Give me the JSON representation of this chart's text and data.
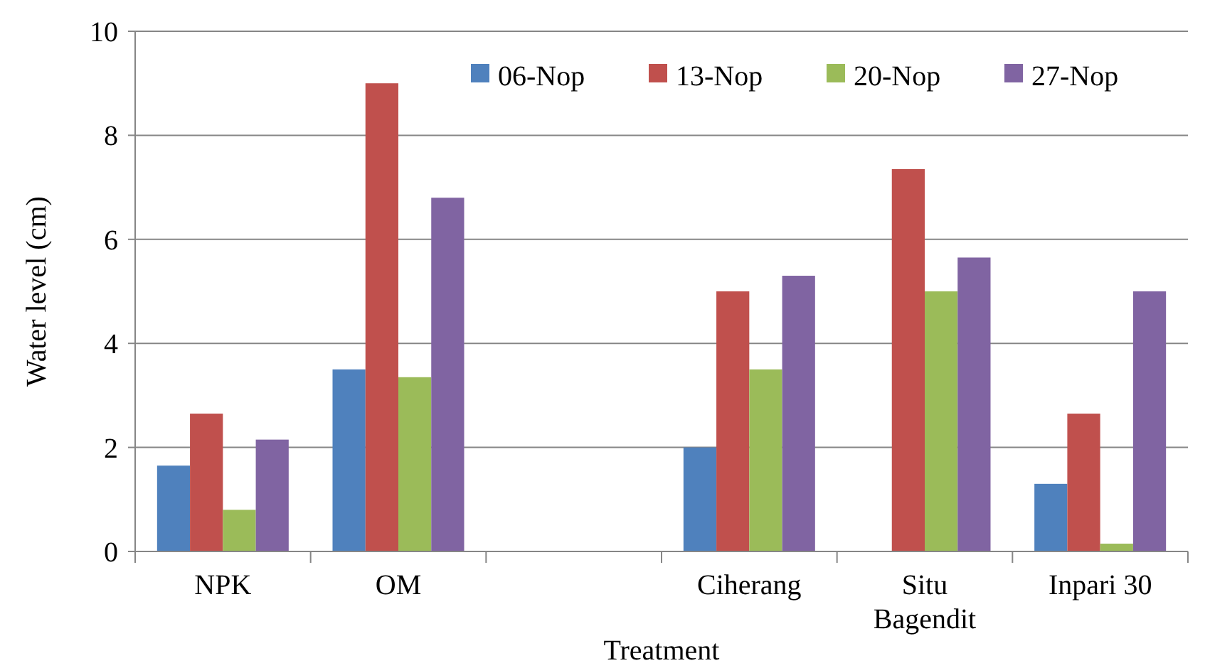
{
  "chart_data": {
    "type": "bar",
    "xlabel": "Treatment",
    "ylabel": "Water level (cm)",
    "categories": [
      "NPK",
      "OM",
      null,
      "Ciherang",
      "Situ Bagendit",
      "Inpari 30"
    ],
    "series": [
      {
        "name": "06-Nop",
        "color": "#4f81bd",
        "values": [
          1.65,
          3.5,
          null,
          2.0,
          0,
          1.3
        ]
      },
      {
        "name": "13-Nop",
        "color": "#c0504d",
        "values": [
          2.65,
          9.0,
          null,
          5.0,
          7.35,
          2.65
        ]
      },
      {
        "name": "20-Nop",
        "color": "#9bbb59",
        "values": [
          0.8,
          3.35,
          null,
          3.5,
          5.0,
          0.15
        ]
      },
      {
        "name": "27-Nop",
        "color": "#8064a2",
        "values": [
          2.15,
          6.8,
          null,
          5.3,
          5.65,
          5.0
        ]
      }
    ],
    "ylim": [
      0,
      10
    ],
    "yticks": [
      0,
      2,
      4,
      6,
      8,
      10
    ],
    "grid": "y",
    "legend": "top right"
  }
}
